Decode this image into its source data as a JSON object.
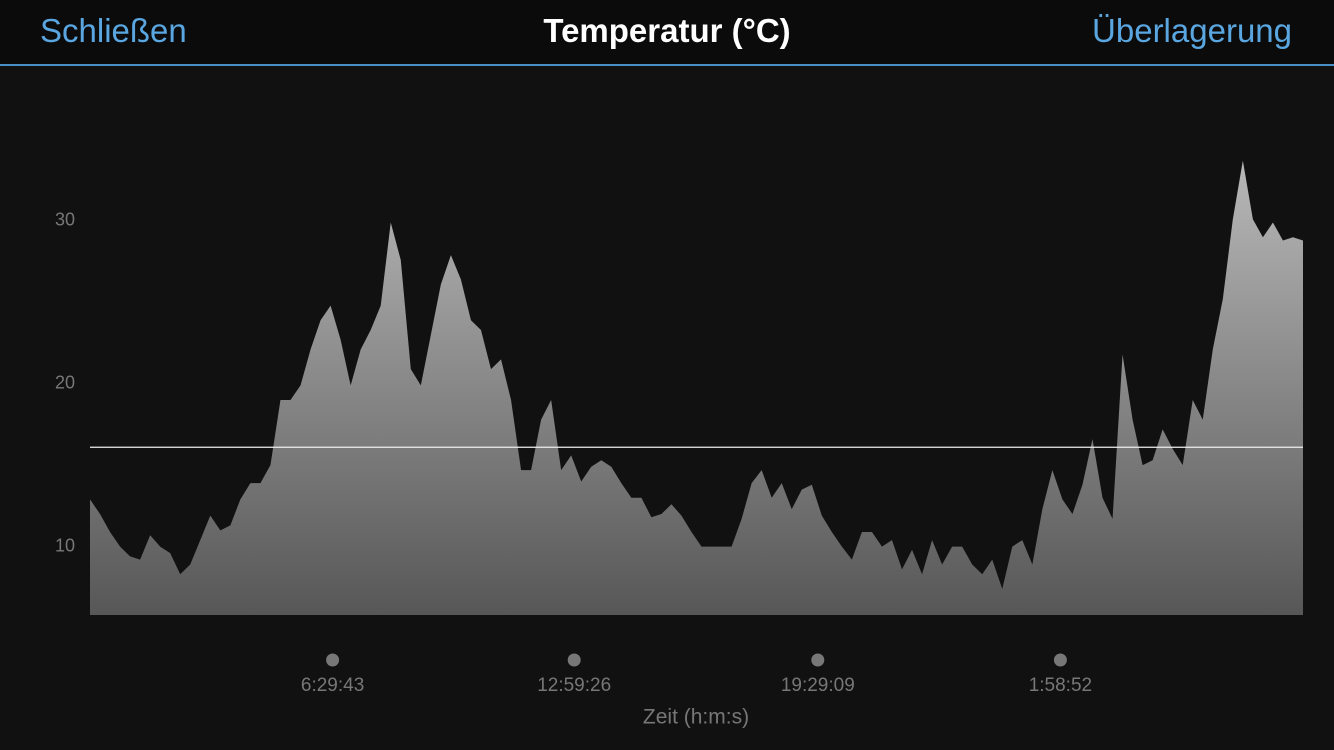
{
  "header": {
    "close": "Schließen",
    "title": "Temperatur (°C)",
    "overlay": "Überlagerung"
  },
  "chart_data": {
    "type": "area",
    "x_label": "Zeit (h:m:s)",
    "values": [
      12.9,
      12,
      10.9,
      10,
      9.4,
      9.2,
      10.7,
      10,
      9.6,
      8.3,
      8.9,
      10.4,
      11.9,
      11,
      11.3,
      12.9,
      13.9,
      13.9,
      15,
      19,
      19,
      19.9,
      22.1,
      23.9,
      24.8,
      22.7,
      19.9,
      22.1,
      23.3,
      24.8,
      29.9,
      27.6,
      20.9,
      19.9,
      23,
      26.1,
      27.9,
      26.4,
      23.9,
      23.3,
      20.9,
      21.5,
      19,
      14.7,
      14.7,
      17.8,
      19,
      14.7,
      15.6,
      14,
      14.9,
      15.3,
      14.9,
      13.9,
      13,
      13,
      11.8,
      12,
      12.6,
      11.9,
      10.9,
      10,
      10,
      10,
      10,
      11.7,
      13.9,
      14.7,
      13,
      13.9,
      12.3,
      13.5,
      13.8,
      11.9,
      10.9,
      10,
      9.2,
      10.9,
      10.9,
      10,
      10.4,
      8.6,
      9.8,
      8.3,
      10.4,
      8.9,
      10,
      10,
      8.9,
      8.3,
      9.2,
      7.4,
      10,
      10.4,
      8.9,
      12.3,
      14.7,
      12.9,
      12,
      13.8,
      16.6,
      13,
      11.7,
      21.8,
      17.8,
      15,
      15.3,
      17.2,
      16,
      15,
      19,
      17.8,
      22.1,
      25.2,
      30.1,
      33.7,
      30.1,
      29,
      29.9,
      28.8,
      29,
      28.8
    ],
    "xlim": [
      0,
      121
    ],
    "xticks": [
      {
        "value": 24.2,
        "label": "6:29:43"
      },
      {
        "value": 48.3,
        "label": "12:59:26"
      },
      {
        "value": 72.6,
        "label": "19:29:09"
      },
      {
        "value": 96.8,
        "label": "1:58:52"
      }
    ],
    "ylim": [
      5.8,
      36
    ],
    "yticks": [
      10,
      20,
      30
    ],
    "reference_line": 16.1,
    "grid": false
  }
}
